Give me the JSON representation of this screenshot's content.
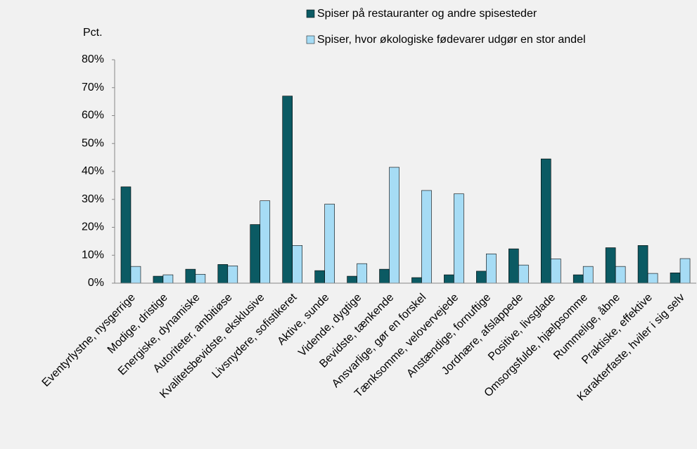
{
  "chart_data": {
    "type": "bar",
    "y_axis_label": "Pct.",
    "categories": [
      "Eventyrlystne, nysgerrige",
      "Modige, dristige",
      "Energiske, dynamiske",
      "Autoriteter, ambitiøse",
      "Kvalitetsbevidste, eksklusive",
      "Livsnydere, sofistikeret",
      "Aktive, sunde",
      "Vidende, dygtige",
      "Bevidste, tænkende",
      "Ansvarlige, gør en forskel",
      "Tænksomme, velovervejede",
      "Anstændige, fornuftige",
      "Jordnære, afslappede",
      "Positive, livsglade",
      "Omsorgsfulde, hjælpsomme",
      "Rummelige, åbne",
      "Praktiske, effektive",
      "Karakterfaste, hviler i sig selv"
    ],
    "series": [
      {
        "name": "Spiser på restauranter og andre spisesteder",
        "color": "#0b5a63",
        "values": [
          34.5,
          2.5,
          5,
          6.7,
          21,
          67,
          4.5,
          2.5,
          5,
          2,
          3,
          4.3,
          12.3,
          44.5,
          3,
          12.7,
          13.5,
          3.7
        ]
      },
      {
        "name": "Spiser, hvor økologiske fødevarer udgør en stor andel",
        "color": "#a6dcf5",
        "values": [
          6,
          3,
          3.2,
          6.2,
          29.5,
          13.5,
          28.3,
          7,
          41.5,
          33.2,
          32,
          10.5,
          6.5,
          8.7,
          6,
          6,
          3.5,
          8.8
        ]
      }
    ],
    "ylim": [
      0,
      80
    ],
    "yticks": [
      {
        "value": 0,
        "label": "0%"
      },
      {
        "value": 10,
        "label": "10%"
      },
      {
        "value": 20,
        "label": "20%"
      },
      {
        "value": 30,
        "label": "30%"
      },
      {
        "value": 40,
        "label": "40%"
      },
      {
        "value": 50,
        "label": "50%"
      },
      {
        "value": 60,
        "label": "60%"
      },
      {
        "value": 70,
        "label": "70%"
      },
      {
        "value": 80,
        "label": "80%"
      }
    ],
    "grid": false,
    "legend": "top"
  }
}
